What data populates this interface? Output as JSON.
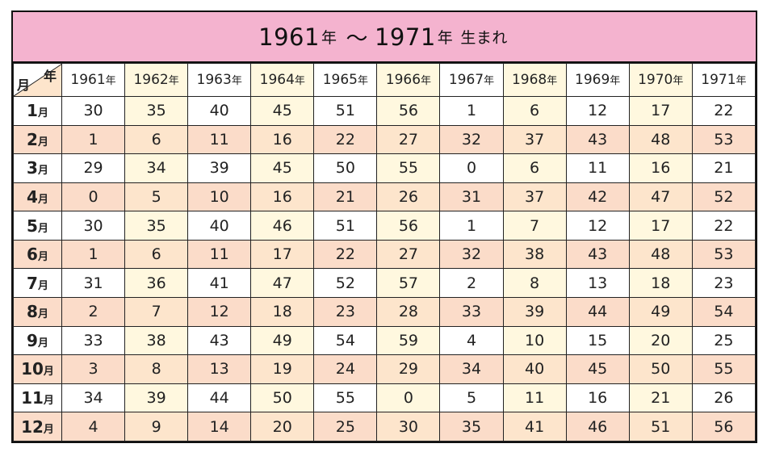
{
  "title": {
    "start_year": "1961",
    "year_kanji": "年",
    "tilde": "～",
    "end_year": "1971",
    "suffix": "生まれ"
  },
  "corner": {
    "year_label": "年",
    "month_label": "月"
  },
  "year_suffix": "年",
  "month_suffix": "月",
  "years": [
    "1961",
    "1962",
    "1963",
    "1964",
    "1965",
    "1966",
    "1967",
    "1968",
    "1969",
    "1970",
    "1971"
  ],
  "rows": [
    {
      "month": "1",
      "values": [
        30,
        35,
        40,
        45,
        51,
        56,
        1,
        6,
        12,
        17,
        22
      ]
    },
    {
      "month": "2",
      "values": [
        1,
        6,
        11,
        16,
        22,
        27,
        32,
        37,
        43,
        48,
        53
      ]
    },
    {
      "month": "3",
      "values": [
        29,
        34,
        39,
        45,
        50,
        55,
        0,
        6,
        11,
        16,
        21
      ]
    },
    {
      "month": "4",
      "values": [
        0,
        5,
        10,
        16,
        21,
        26,
        31,
        37,
        42,
        47,
        52
      ]
    },
    {
      "month": "5",
      "values": [
        30,
        35,
        40,
        46,
        51,
        56,
        1,
        7,
        12,
        17,
        22
      ]
    },
    {
      "month": "6",
      "values": [
        1,
        6,
        11,
        17,
        22,
        27,
        32,
        38,
        43,
        48,
        53
      ]
    },
    {
      "month": "7",
      "values": [
        31,
        36,
        41,
        47,
        52,
        57,
        2,
        8,
        13,
        18,
        23
      ]
    },
    {
      "month": "8",
      "values": [
        2,
        7,
        12,
        18,
        23,
        28,
        33,
        39,
        44,
        49,
        54
      ]
    },
    {
      "month": "9",
      "values": [
        33,
        38,
        43,
        49,
        54,
        59,
        4,
        10,
        15,
        20,
        25
      ]
    },
    {
      "month": "10",
      "values": [
        3,
        8,
        13,
        19,
        24,
        29,
        34,
        40,
        45,
        50,
        55
      ]
    },
    {
      "month": "11",
      "values": [
        34,
        39,
        44,
        50,
        55,
        0,
        5,
        11,
        16,
        21,
        26
      ]
    },
    {
      "month": "12",
      "values": [
        4,
        9,
        14,
        20,
        25,
        30,
        35,
        41,
        46,
        51,
        56
      ]
    }
  ],
  "colors": {
    "title_background": "#f4b3cf",
    "alt_column": "#fff8df",
    "shaded_row": "#fbdcc9",
    "border": "#111111"
  }
}
